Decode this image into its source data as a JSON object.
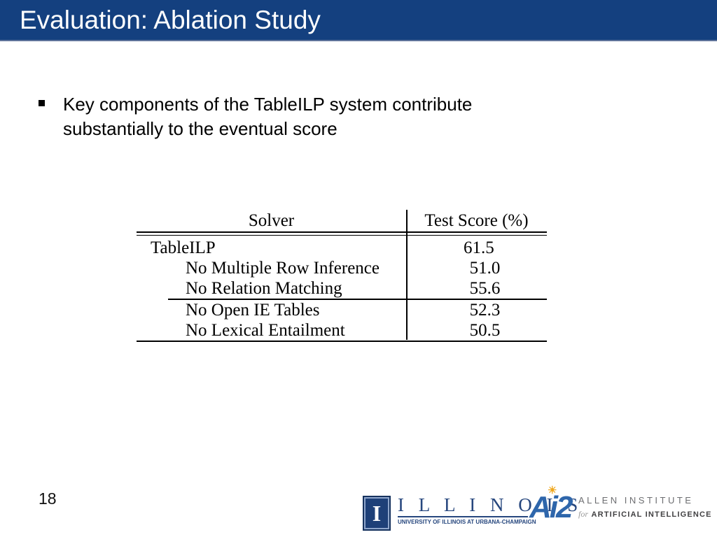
{
  "slide": {
    "title": "Evaluation: Ablation Study",
    "page_number": "18",
    "bullet": {
      "line1": "Key components of the TableILP system contribute",
      "line2": "substantially to the eventual score"
    },
    "table": {
      "columns": [
        "Solver",
        "Test Score (%)"
      ],
      "rows": [
        {
          "solver": "TableILP",
          "score": "61.5"
        },
        {
          "solver": "No Multiple Row Inference",
          "score": "51.0"
        },
        {
          "solver": "No Relation Matching",
          "score": "55.6"
        },
        {
          "solver": "No Open IE Tables",
          "score": "52.3"
        },
        {
          "solver": "No Lexical Entailment",
          "score": "50.5"
        }
      ]
    },
    "footer": {
      "illinois": {
        "mark": "I",
        "wordmark": "I L L I N O I S",
        "tagline": "UNIVERSITY OF ILLINOIS AT URBANA-CHAMPAIGN"
      },
      "ai2": {
        "mark": "Ai2",
        "sun_icon": "☀",
        "line1": "ALLEN INSTITUTE",
        "line2_prefix": "for",
        "line2": "ARTIFICIAL INTELLIGENCE"
      }
    },
    "colors": {
      "header_bg": "#14407f",
      "header_text": "#ffffff",
      "body_text": "#000000",
      "illinois_blue": "#27477e",
      "ai2_blue": "#2e66ab",
      "ai2_sun": "#f0a81f",
      "ai2_gray": "#6d6e71",
      "ai2_dark": "#414042"
    }
  }
}
